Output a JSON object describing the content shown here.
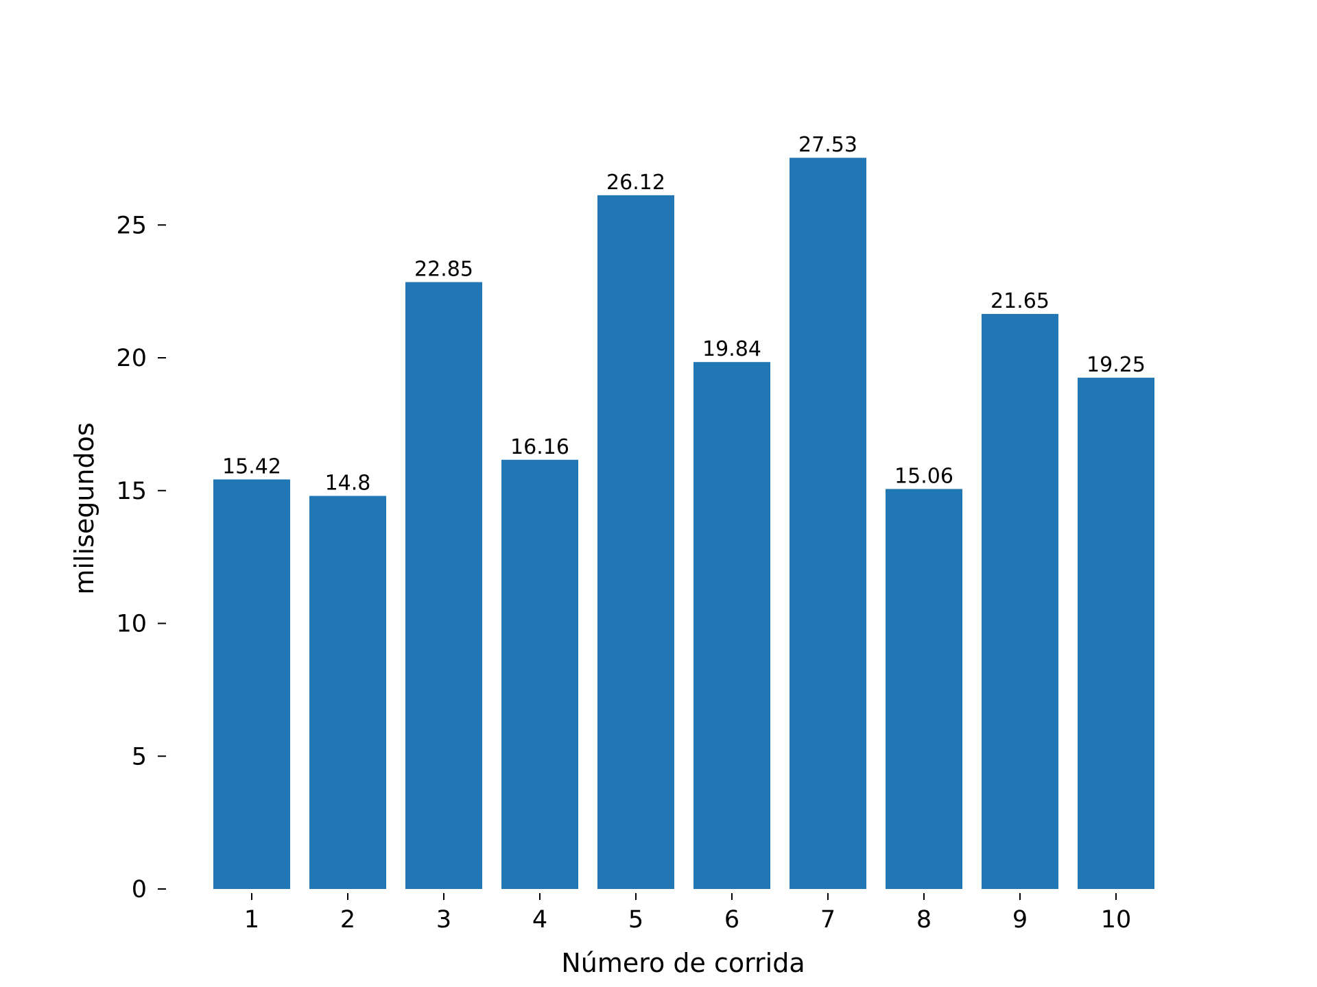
{
  "chart_data": {
    "type": "bar",
    "title": "",
    "xlabel": "Número de corrida",
    "ylabel": "milisegundos",
    "categories": [
      "1",
      "2",
      "3",
      "4",
      "5",
      "6",
      "7",
      "8",
      "9",
      "10"
    ],
    "values": [
      15.42,
      14.8,
      22.85,
      16.16,
      26.12,
      19.84,
      27.53,
      15.06,
      21.65,
      19.25
    ],
    "value_labels": [
      "15.42",
      "14.8",
      "22.85",
      "16.16",
      "26.12",
      "19.84",
      "27.53",
      "15.06",
      "21.65",
      "19.25"
    ],
    "ylim": [
      0,
      30
    ],
    "yticks": [
      0,
      5,
      10,
      15,
      20,
      25
    ],
    "ytick_labels": [
      "0",
      "5",
      "10",
      "15",
      "20",
      "25"
    ],
    "grid": false,
    "legend": "none",
    "colors": {
      "bar": "#2077b4",
      "text": "#000000"
    }
  }
}
